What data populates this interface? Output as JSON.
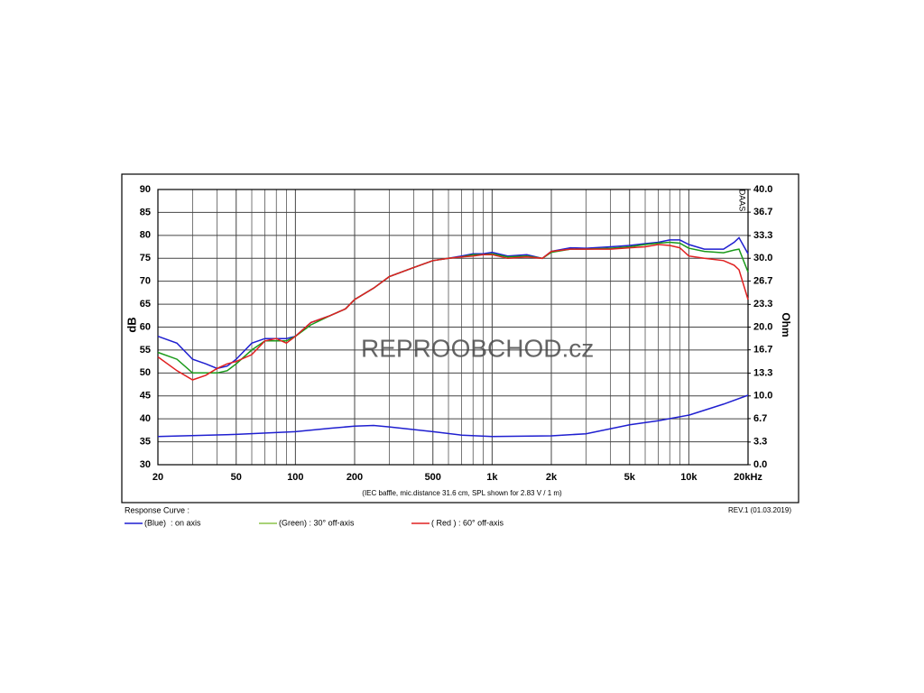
{
  "chart_data": {
    "type": "line",
    "x_log": true,
    "grid": true,
    "xlim": [
      20,
      20000
    ],
    "ylim": [
      30,
      90
    ],
    "y2lim": [
      0,
      40
    ],
    "xticks": [
      20,
      50,
      100,
      200,
      500,
      {
        "value": 1000,
        "label": "1k"
      },
      {
        "value": 2000,
        "label": "2k"
      },
      {
        "value": 5000,
        "label": "5k"
      },
      {
        "value": 10000,
        "label": "10k"
      },
      {
        "value": 20000,
        "label": "20kHz"
      }
    ],
    "x_minor_ticks": [
      30,
      40,
      60,
      70,
      80,
      90,
      300,
      400,
      600,
      700,
      800,
      900,
      3000,
      4000,
      6000,
      7000,
      8000,
      9000
    ],
    "yticks": [
      30,
      35,
      40,
      45,
      50,
      55,
      60,
      65,
      70,
      75,
      80,
      85,
      90
    ],
    "y2ticks": [
      {
        "value": 0,
        "label": "0.0"
      },
      3.3,
      6.7,
      {
        "value": 10,
        "label": "10.0"
      },
      13.3,
      16.7,
      {
        "value": 20,
        "label": "20.0"
      },
      23.3,
      26.7,
      {
        "value": 30,
        "label": "30.0"
      },
      33.3,
      36.7,
      {
        "value": 40,
        "label": "40.0"
      }
    ],
    "ylabel": "dB",
    "y2label": "Ohm",
    "brand": "DAAS",
    "watermark": "REPROOBCHOD.cz",
    "caption": "(IEC baffle, mic.distance 31.6 cm, SPL shown for 2.83 V / 1 m)",
    "legend_title": "Response Curve :",
    "revision": "REV.1 (01.03.2019)",
    "x": [
      20,
      25,
      30,
      35,
      40,
      45,
      50,
      60,
      70,
      80,
      90,
      100,
      120,
      150,
      180,
      200,
      250,
      300,
      400,
      500,
      600,
      700,
      800,
      900,
      1000,
      1200,
      1500,
      1800,
      2000,
      2500,
      3000,
      4000,
      5000,
      6000,
      7000,
      8000,
      9000,
      10000,
      12000,
      15000,
      17000,
      18000,
      20000
    ],
    "series": [
      {
        "name": "(Blue)  : on axis",
        "color": "#1f1fd0",
        "values": [
          58,
          56.5,
          53,
          52,
          51,
          51.5,
          53,
          56.5,
          57.5,
          57.5,
          57.5,
          58,
          61,
          62.5,
          64,
          66,
          68.5,
          71,
          73,
          74.5,
          75,
          75.5,
          76,
          76,
          76.3,
          75.5,
          75.8,
          75,
          76.5,
          77.3,
          77.2,
          77.5,
          77.8,
          78.2,
          78.5,
          79,
          79,
          78,
          77,
          77,
          78.5,
          79.5,
          76
        ]
      },
      {
        "name": "(Green) : 30° off-axis",
        "color": "#1a9a1a",
        "legend_color": "#8bc34a",
        "values": [
          54.5,
          53,
          50,
          50,
          50,
          50.5,
          52,
          55,
          57,
          57,
          57,
          58,
          60.5,
          62.5,
          64,
          66,
          68.5,
          71,
          73,
          74.5,
          75,
          75.3,
          75.8,
          75.8,
          76,
          75.3,
          75.5,
          75,
          76.3,
          77,
          77,
          77.2,
          77.5,
          78,
          78.3,
          78.5,
          78.3,
          77.2,
          76.5,
          76.2,
          76.8,
          77,
          72
        ]
      },
      {
        "name": "( Red ) : 60° off-axis",
        "color": "#e02020",
        "values": [
          53.5,
          50.5,
          48.5,
          49.5,
          51,
          52,
          52.5,
          54,
          57,
          57.5,
          56.5,
          58,
          61,
          62.5,
          64,
          66,
          68.5,
          71,
          73,
          74.5,
          75,
          75.3,
          75.5,
          75.8,
          75.8,
          75,
          75.3,
          75,
          76.5,
          77,
          77,
          77,
          77.3,
          77.5,
          78,
          77.8,
          77.3,
          75.5,
          75,
          74.5,
          73.5,
          72.5,
          66
        ]
      },
      {
        "axis": "y2",
        "color": "#1f1fd0",
        "x": [
          20,
          50,
          100,
          150,
          200,
          250,
          300,
          500,
          700,
          1000,
          2000,
          3000,
          5000,
          7000,
          10000,
          15000,
          20000
        ],
        "values": [
          4.1,
          4.4,
          4.8,
          5.3,
          5.6,
          5.7,
          5.5,
          4.8,
          4.3,
          4.1,
          4.2,
          4.5,
          5.8,
          6.4,
          7.2,
          8.8,
          10.1
        ]
      }
    ]
  }
}
